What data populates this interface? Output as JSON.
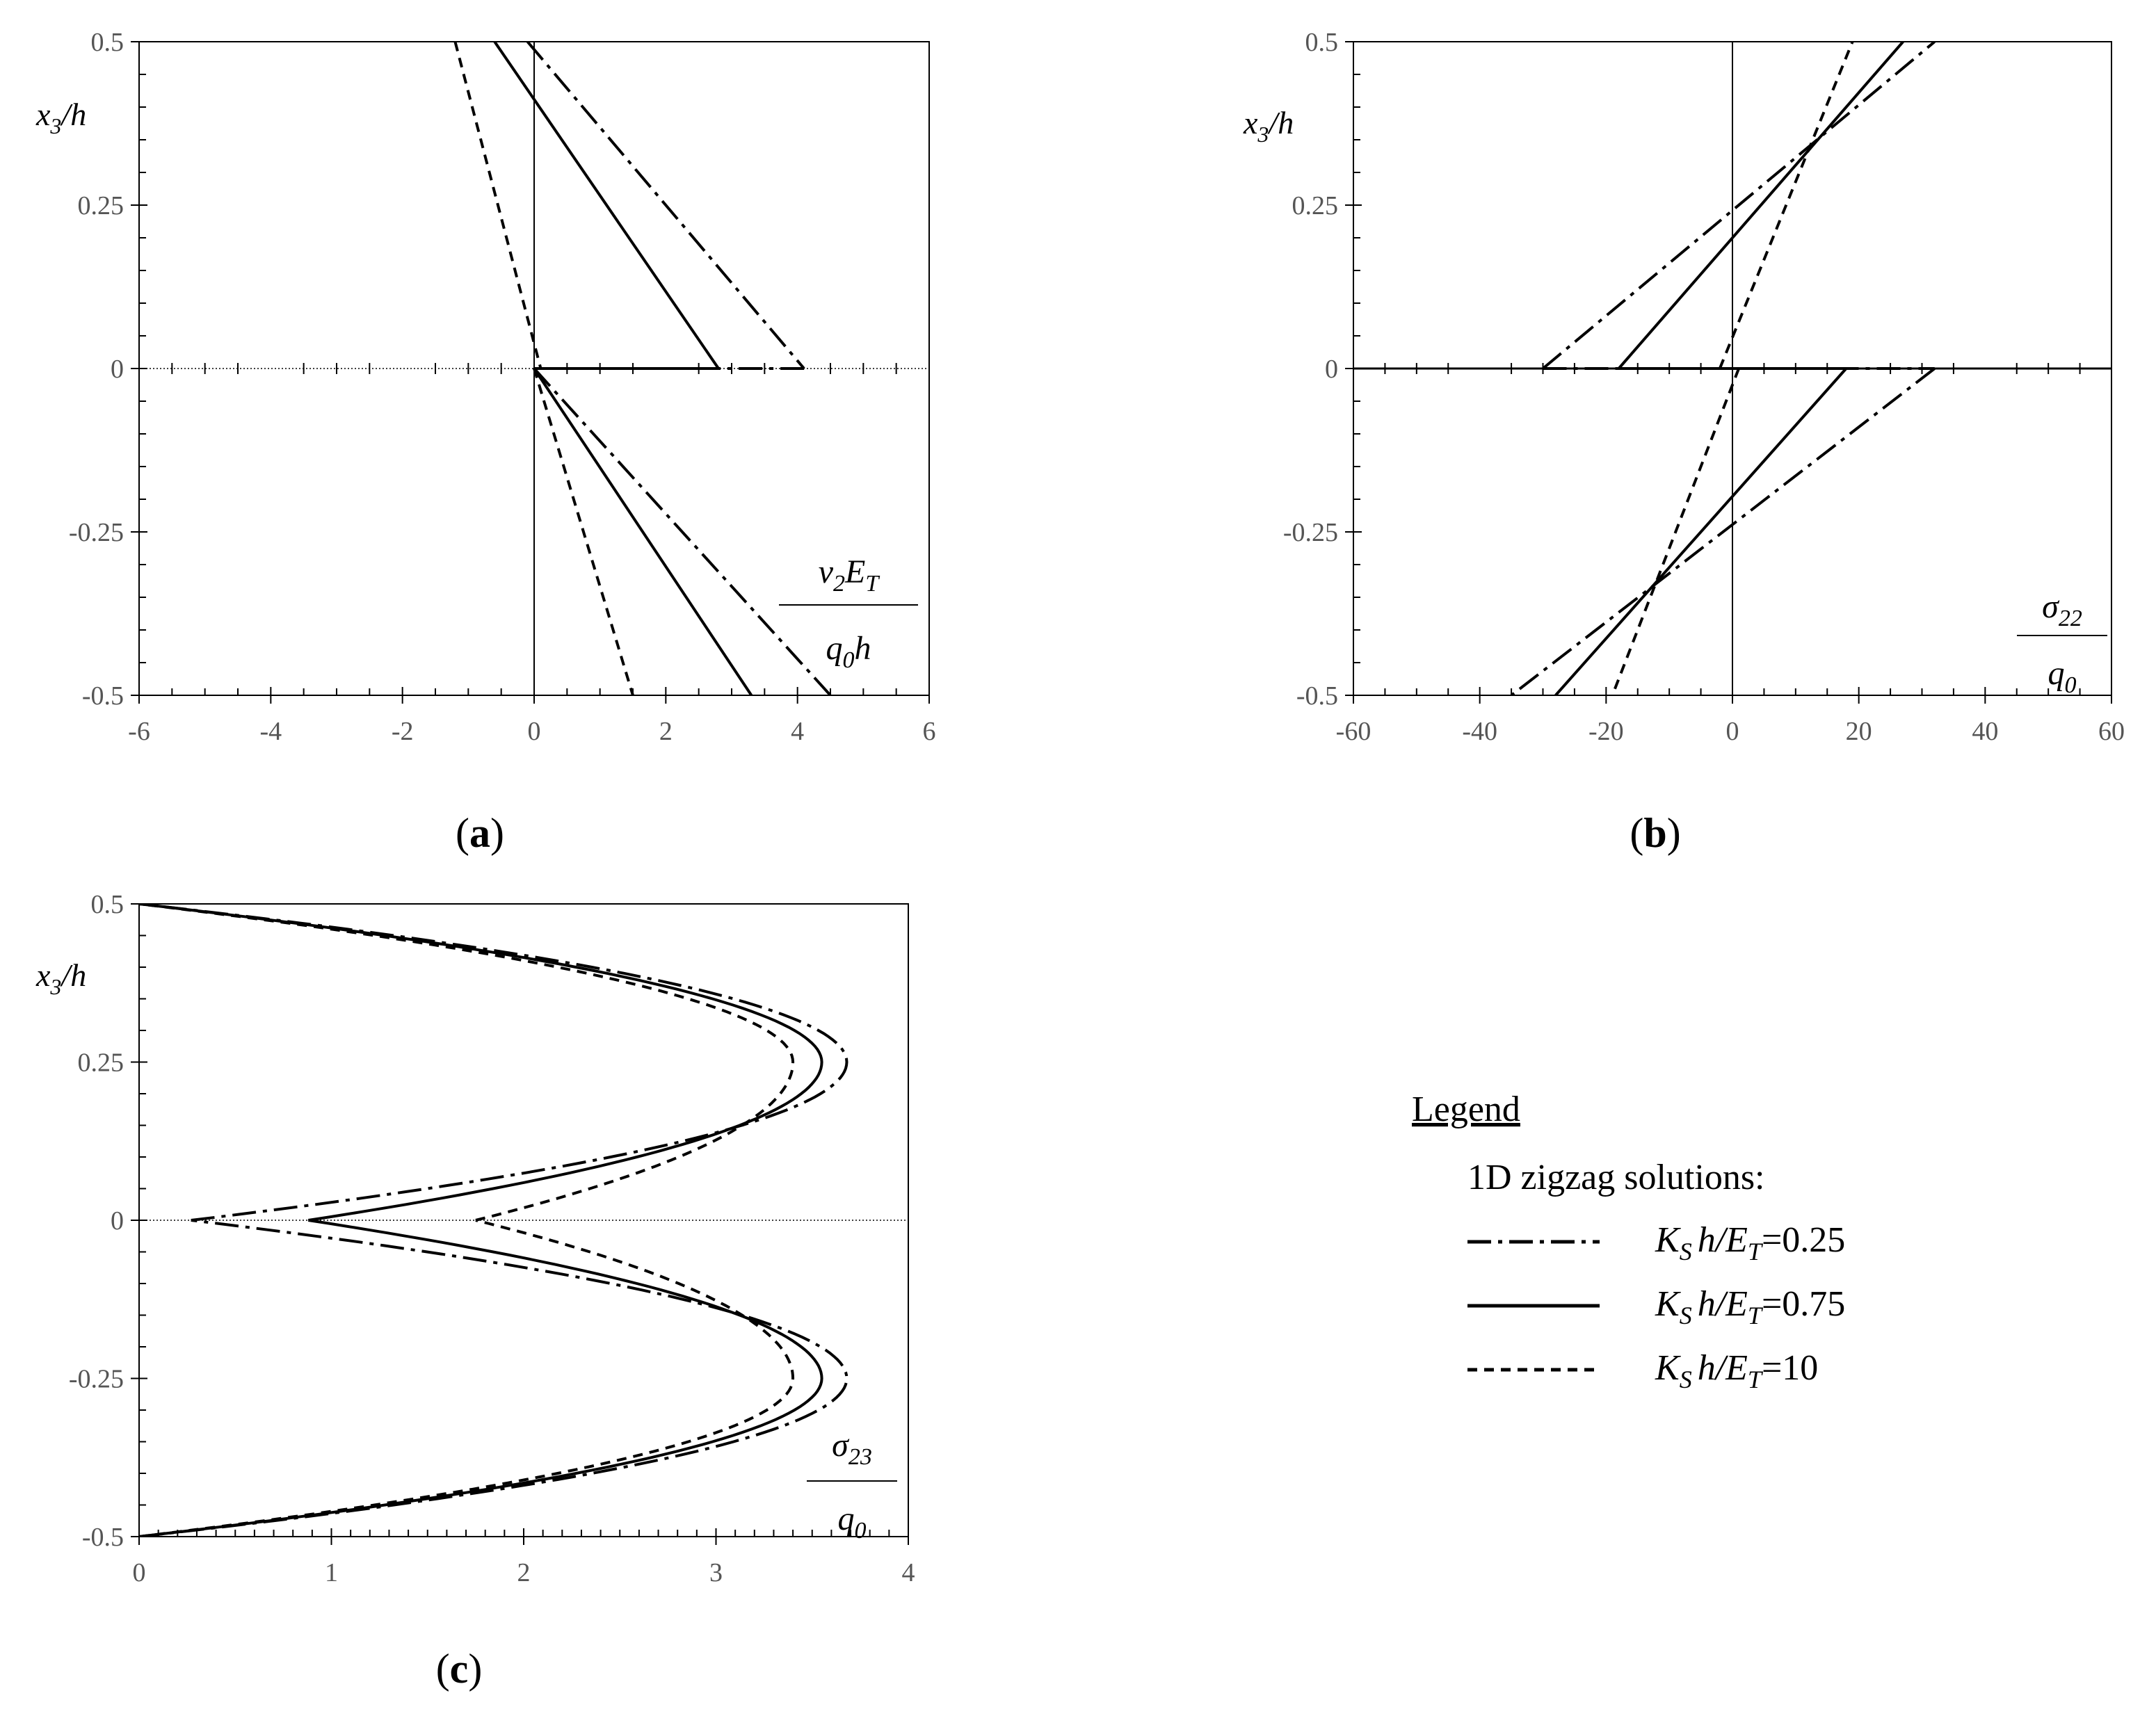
{
  "chart_data": [
    {
      "type": "line",
      "panel": "(a)",
      "panel_label": {
        "open": "(",
        "letter": "a",
        "close": ")"
      },
      "xlim": [
        -6,
        6
      ],
      "ylim": [
        -0.5,
        0.5
      ],
      "x_ticks": [
        -6,
        -4,
        -2,
        0,
        2,
        4,
        6
      ],
      "y_ticks": [
        -0.5,
        -0.25,
        0,
        0.25,
        0.5
      ],
      "x_tick_labels": [
        "-6",
        "-4",
        "-2",
        "0",
        "2",
        "4",
        "6"
      ],
      "y_tick_labels": [
        "-0.5",
        "-0.25",
        "0",
        "0.25",
        "0.5"
      ],
      "ylabel": {
        "base": "x",
        "sub": "3",
        "rest": "/h"
      },
      "xlabel_fraction": {
        "num": "v",
        "num_sub": "2",
        "num_rest": "E",
        "num_rest_sub": "T",
        "den": "q",
        "den_sub": "0",
        "den_rest": "h"
      },
      "grid": false,
      "series": [
        {
          "name": "K_S h/E_T=0.25",
          "style": "dashdot",
          "segments": [
            [
              [
                -0.1,
                0.5
              ],
              [
                4.1,
                0.0
              ]
            ],
            [
              [
                4.1,
                0.0
              ],
              [
                0.0,
                0.0
              ]
            ],
            [
              [
                0.0,
                0.0
              ],
              [
                4.5,
                -0.5
              ]
            ]
          ]
        },
        {
          "name": "K_S h/E_T=0.75",
          "style": "solid",
          "segments": [
            [
              [
                -0.6,
                0.5
              ],
              [
                2.8,
                0.0
              ]
            ],
            [
              [
                2.8,
                0.0
              ],
              [
                0.0,
                0.0
              ]
            ],
            [
              [
                0.0,
                0.0
              ],
              [
                3.3,
                -0.5
              ]
            ]
          ]
        },
        {
          "name": "K_S h/E_T=10",
          "style": "dashed",
          "segments": [
            [
              [
                -1.2,
                0.5
              ],
              [
                0.1,
                0.0
              ]
            ],
            [
              [
                0.1,
                0.0
              ],
              [
                0.0,
                0.0
              ]
            ],
            [
              [
                0.0,
                0.0
              ],
              [
                1.5,
                -0.5
              ]
            ]
          ]
        }
      ]
    },
    {
      "type": "line",
      "panel": "(b)",
      "panel_label": {
        "open": "(",
        "letter": "b",
        "close": ")"
      },
      "xlim": [
        -60,
        60
      ],
      "ylim": [
        -0.5,
        0.5
      ],
      "x_ticks": [
        -60,
        -40,
        -20,
        0,
        20,
        40,
        60
      ],
      "y_ticks": [
        -0.5,
        -0.25,
        0,
        0.25,
        0.5
      ],
      "x_tick_labels": [
        "-60",
        "-40",
        "-20",
        "0",
        "20",
        "40",
        "60"
      ],
      "y_tick_labels": [
        "-0.5",
        "-0.25",
        "0",
        "0.25",
        "0.5"
      ],
      "ylabel": {
        "base": "x",
        "sub": "3",
        "rest": "/h"
      },
      "xlabel_fraction": {
        "num": "σ",
        "num_sub": "22",
        "den": "q",
        "den_sub": "0"
      },
      "grid": false,
      "series": [
        {
          "name": "K_S h/E_T=0.25",
          "style": "dashdot",
          "segments": [
            [
              [
                -30,
                0.0
              ],
              [
                32,
                0.5
              ]
            ],
            [
              [
                -30,
                0.0
              ],
              [
                32,
                0.0
              ]
            ],
            [
              [
                32,
                0.0
              ],
              [
                -35,
                -0.5
              ]
            ]
          ]
        },
        {
          "name": "K_S h/E_T=0.75",
          "style": "solid",
          "segments": [
            [
              [
                -18,
                0.0
              ],
              [
                27,
                0.5
              ]
            ],
            [
              [
                -18,
                0.0
              ],
              [
                18,
                0.0
              ]
            ],
            [
              [
                18,
                0.0
              ],
              [
                -28,
                -0.5
              ]
            ]
          ]
        },
        {
          "name": "K_S h/E_T=10",
          "style": "dashed",
          "segments": [
            [
              [
                -2,
                0.0
              ],
              [
                19,
                0.5
              ]
            ],
            [
              [
                -2,
                0.0
              ],
              [
                1,
                0.0
              ]
            ],
            [
              [
                1,
                0.0
              ],
              [
                -19,
                -0.5
              ]
            ]
          ]
        }
      ]
    },
    {
      "type": "line",
      "panel": "(c)",
      "panel_label": {
        "open": "(",
        "letter": "c",
        "close": ")"
      },
      "xlim": [
        0,
        4
      ],
      "ylim": [
        -0.5,
        0.5
      ],
      "x_ticks": [
        0,
        1,
        2,
        3,
        4
      ],
      "y_ticks": [
        -0.5,
        -0.25,
        0,
        0.25,
        0.5
      ],
      "x_tick_labels": [
        "0",
        "1",
        "2",
        "3",
        "4"
      ],
      "y_tick_labels": [
        "-0.5",
        "-0.25",
        "0",
        "0.25",
        "0.5"
      ],
      "ylabel": {
        "base": "x",
        "sub": "3",
        "rest": "/h"
      },
      "xlabel_fraction": {
        "num": "σ",
        "num_sub": "23",
        "den": "q",
        "den_sub": "0"
      },
      "grid": false,
      "series": [
        {
          "name": "K_S h/E_T=0.25",
          "style": "dashdot",
          "x0": 0.27,
          "peak": 3.68
        },
        {
          "name": "K_S h/E_T=0.75",
          "style": "solid",
          "x0": 0.88,
          "peak": 3.55
        },
        {
          "name": "K_S h/E_T=10",
          "style": "dashed",
          "x0": 1.75,
          "peak": 3.4
        }
      ]
    }
  ],
  "legend": {
    "title": "Legend",
    "subtitle": "1D zigzag solutions:",
    "entries": [
      {
        "style": "dashdot",
        "k": "K",
        "k_sub": "S",
        "h": "h/",
        "e": "E",
        "e_sub": "T",
        "value": "=0.25"
      },
      {
        "style": "solid",
        "k": "K",
        "k_sub": "S",
        "h": "h/",
        "e": "E",
        "e_sub": "T",
        "value": "=0.75"
      },
      {
        "style": "dashed",
        "k": "K",
        "k_sub": "S",
        "h": "h/",
        "e": "E",
        "e_sub": "T",
        "value": "=10"
      }
    ]
  },
  "colors": {
    "line": "#000000",
    "tick_label": "#555555"
  }
}
